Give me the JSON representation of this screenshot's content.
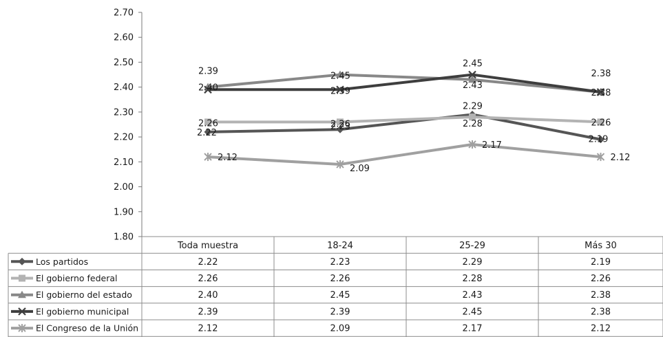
{
  "chart_data": {
    "type": "line",
    "title": "",
    "xlabel": "",
    "ylabel": "",
    "ylim": [
      1.8,
      2.7
    ],
    "ytick_labels": [
      "1.80",
      "1.90",
      "2.00",
      "2.10",
      "2.20",
      "2.30",
      "2.40",
      "2.50",
      "2.60",
      "2.70"
    ],
    "categories": [
      "Toda muestra",
      "18-24",
      "25-29",
      "Más 30"
    ],
    "grid": false,
    "legend": "data-table-below",
    "series": [
      {
        "name": "Los partidos",
        "values": [
          2.22,
          2.23,
          2.29,
          2.19
        ],
        "labels": [
          "2.22",
          "2.23",
          "2.29",
          "2.19"
        ],
        "color": "#555555",
        "marker": "diamond"
      },
      {
        "name": "El gobierno federal",
        "values": [
          2.26,
          2.26,
          2.28,
          2.26
        ],
        "labels": [
          "2.26",
          "2.26",
          "2.28",
          "2.26"
        ],
        "color": "#b3b3b3",
        "marker": "square"
      },
      {
        "name": "El gobierno del estado",
        "values": [
          2.4,
          2.45,
          2.43,
          2.38
        ],
        "labels": [
          "2.40",
          "2.45",
          "2.43",
          "2.38"
        ],
        "color": "#888888",
        "marker": "triangle"
      },
      {
        "name": "El gobierno municipal",
        "values": [
          2.39,
          2.39,
          2.45,
          2.38
        ],
        "labels": [
          "2.39",
          "2.39",
          "2.45",
          "2.38"
        ],
        "color": "#3e3e3e",
        "marker": "x"
      },
      {
        "name": "El Congreso de la Unión",
        "values": [
          2.12,
          2.09,
          2.17,
          2.12
        ],
        "labels": [
          "2.12",
          "2.09",
          "2.17",
          "2.12"
        ],
        "color": "#a0a0a0",
        "marker": "star"
      }
    ]
  }
}
